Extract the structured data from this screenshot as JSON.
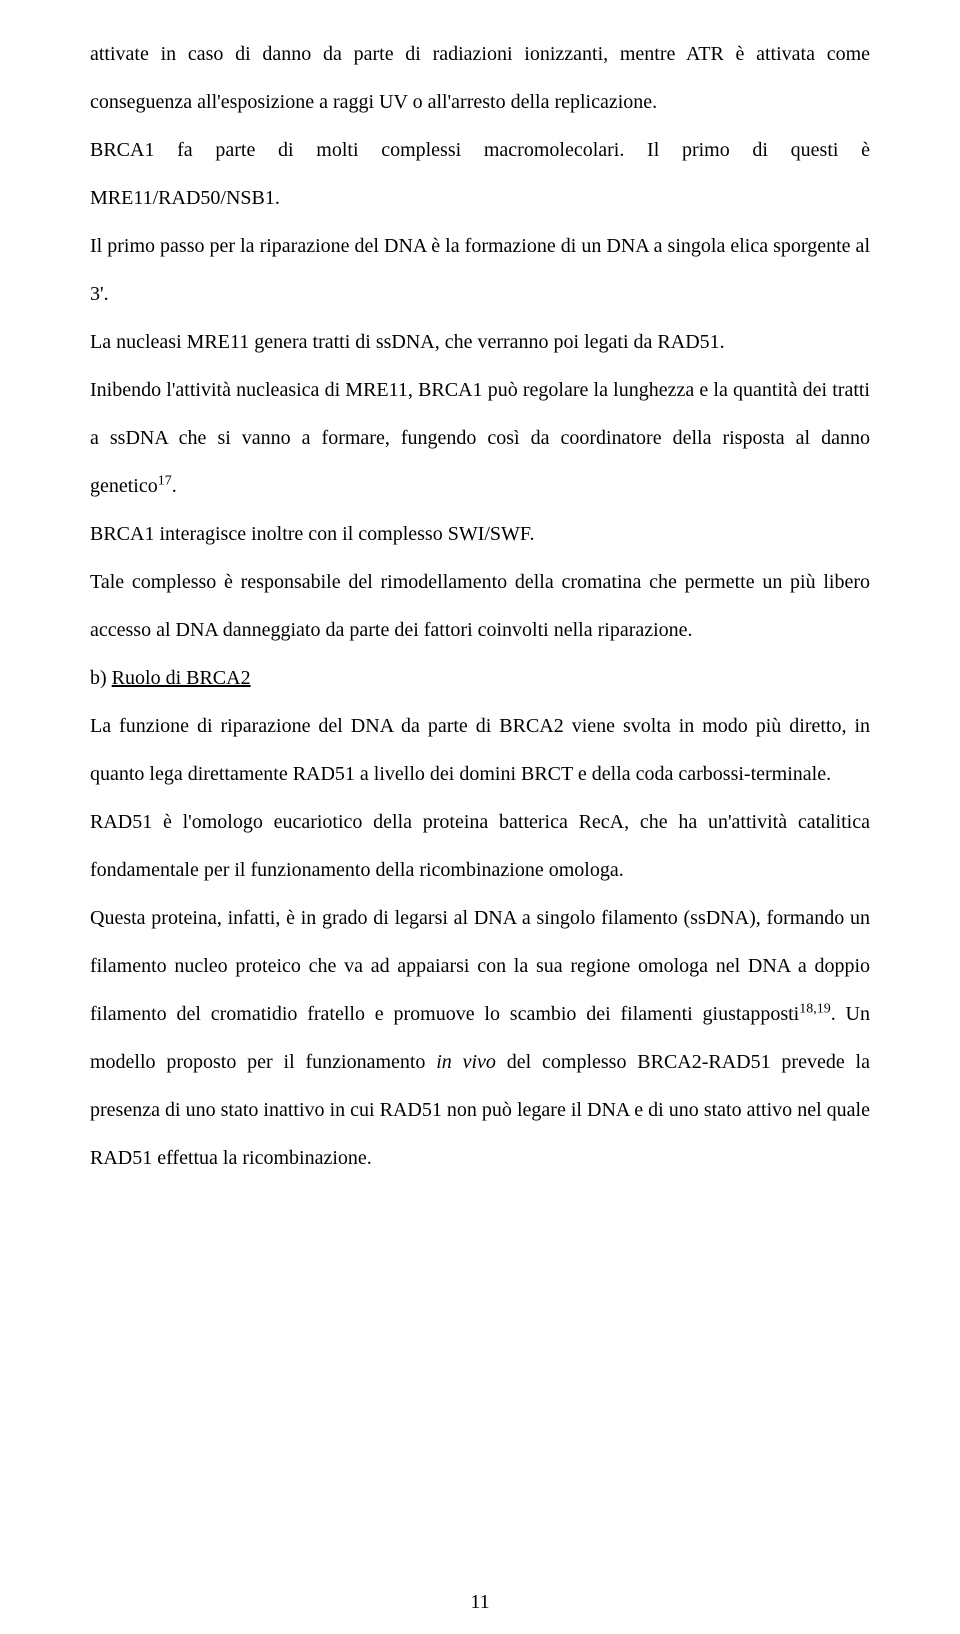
{
  "paragraphs": {
    "p1a": "attivate in caso di danno da parte di radiazioni ionizzanti, mentre ATR è attivata come conseguenza all'esposizione a raggi UV o all'arresto della replicazione.",
    "p2": "BRCA1 fa parte di molti complessi macromolecolari. Il primo di questi è MRE11/RAD50/NSB1.",
    "p3": "Il primo passo per la riparazione del DNA è la formazione di un DNA a singola elica sporgente al 3'.",
    "p4": "La nucleasi MRE11 genera tratti di ssDNA, che verranno poi legati da RAD51.",
    "p5a": "Inibendo l'attività nucleasica di MRE11, BRCA1 può regolare la lunghezza e la quantità dei tratti a ssDNA che si vanno a formare, fungendo così da coordinatore della risposta al danno genetico",
    "p5sup": "17",
    "p5b": ".",
    "p6": "BRCA1 interagisce inoltre con il complesso SWI/SWF.",
    "p7": "Tale complesso è responsabile del rimodellamento della cromatina che permette un più libero accesso al DNA danneggiato da parte dei fattori coinvolti nella riparazione.",
    "section_label": "b) ",
    "section_title": "Ruolo di BRCA2",
    "p8": "La funzione di riparazione del DNA da parte di BRCA2 viene svolta in modo più diretto, in quanto lega direttamente RAD51 a livello dei domini BRCT e della coda carbossi-terminale.",
    "p9": "RAD51 è l'omologo eucariotico della proteina batterica RecA, che ha un'attività catalitica fondamentale per il funzionamento della ricombinazione omologa.",
    "p10a": "Questa proteina, infatti, è in grado di legarsi al DNA a singolo filamento (ssDNA), formando un filamento nucleo proteico che va ad appaiarsi con la sua regione omologa nel DNA a doppio filamento del cromatidio fratello e promuove lo scambio dei filamenti giustapposti",
    "p10sup": "18,19",
    "p10b": ". Un modello proposto per il funzionamento ",
    "p10italic": "in vivo",
    "p10c": " del complesso BRCA2-RAD51 prevede la presenza di uno stato inattivo in cui RAD51 non può legare il DNA e di uno stato attivo nel quale RAD51 effettua la ricombinazione."
  },
  "page_number": "11"
}
